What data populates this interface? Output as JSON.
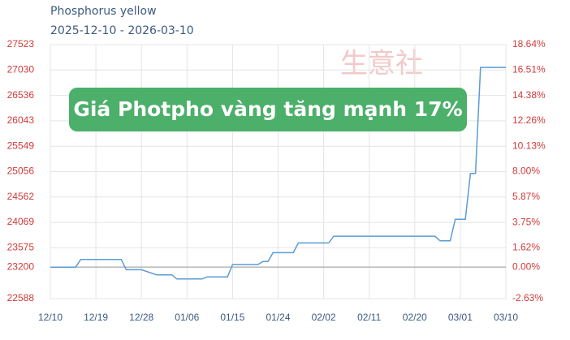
{
  "chart_data": {
    "type": "line",
    "title": "Phosphorus yellow",
    "subtitle": "2025-12-10 - 2026-03-10",
    "annotation": "Giá Photpho vàng tăng mạnh 17%",
    "watermark": "生意社",
    "x": [
      "2025-12-10",
      "2025-12-15",
      "2025-12-16",
      "2025-12-24",
      "2025-12-25",
      "2025-12-28",
      "2025-12-31",
      "2026-01-03",
      "2026-01-04",
      "2026-01-09",
      "2026-01-10",
      "2026-01-14",
      "2026-01-15",
      "2026-01-20",
      "2026-01-21",
      "2026-01-22",
      "2026-01-23",
      "2026-01-27",
      "2026-01-28",
      "2026-02-03",
      "2026-02-04",
      "2026-02-24",
      "2026-02-25",
      "2026-02-27",
      "2026-02-28",
      "2026-03-02",
      "2026-03-03",
      "2026-03-04",
      "2026-03-05",
      "2026-03-10"
    ],
    "series": [
      {
        "color": "#5b9bd5",
        "values": [
          23200,
          23200,
          23350,
          23350,
          23150,
          23150,
          23050,
          23050,
          22970,
          22970,
          23010,
          23010,
          23250,
          23250,
          23310,
          23310,
          23480,
          23480,
          23670,
          23670,
          23800,
          23800,
          23710,
          23710,
          24130,
          24130,
          25020,
          25020,
          27080,
          27080
        ]
      }
    ],
    "xlim": [
      "2025-12-10",
      "2026-03-10"
    ],
    "xticks": [
      {
        "value": "2025-12-10",
        "label": "12/10"
      },
      {
        "value": "2025-12-19",
        "label": "12/19"
      },
      {
        "value": "2025-12-28",
        "label": "12/28"
      },
      {
        "value": "2026-01-06",
        "label": "01/06"
      },
      {
        "value": "2026-01-15",
        "label": "01/15"
      },
      {
        "value": "2026-01-24",
        "label": "01/24"
      },
      {
        "value": "2026-02-02",
        "label": "02/02"
      },
      {
        "value": "2026-02-11",
        "label": "02/11"
      },
      {
        "value": "2026-02-20",
        "label": "02/20"
      },
      {
        "value": "2026-03-01",
        "label": "03/01"
      },
      {
        "value": "2026-03-10",
        "label": "03/10"
      }
    ],
    "ylim": [
      22588,
      27523
    ],
    "yticks": [
      22588,
      23200,
      23575,
      24069,
      24562,
      25056,
      25549,
      26043,
      26536,
      27030,
      27523
    ],
    "y2lim": [
      -2.63,
      18.64
    ],
    "y2ticks": [
      {
        "value": -2.63,
        "label": "-2.63%"
      },
      {
        "value": 0,
        "label": "0.00%"
      },
      {
        "value": 1.62,
        "label": "1.62%"
      },
      {
        "value": 3.75,
        "label": "3.75%"
      },
      {
        "value": 5.87,
        "label": "5.87%"
      },
      {
        "value": 8.0,
        "label": "8.00%"
      },
      {
        "value": 10.13,
        "label": "10.13%"
      },
      {
        "value": 12.26,
        "label": "12.26%"
      },
      {
        "value": 14.38,
        "label": "14.38%"
      },
      {
        "value": 16.51,
        "label": "16.51%"
      },
      {
        "value": 18.64,
        "label": "18.64%"
      }
    ],
    "reference_y": 23200,
    "grid": true
  }
}
